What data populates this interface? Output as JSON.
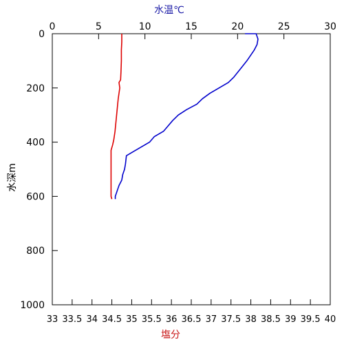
{
  "chart_data": {
    "type": "line",
    "y_axis": {
      "label": "水深m",
      "range": [
        1000,
        0
      ],
      "ticks": [
        0,
        200,
        400,
        600,
        800,
        1000
      ],
      "inverted": true
    },
    "x_top": {
      "label": "水温℃",
      "label_color": "#1a1aa6",
      "range": [
        0,
        30
      ],
      "ticks": [
        0,
        5,
        10,
        15,
        20,
        25,
        30
      ]
    },
    "x_bottom": {
      "label": "塩分",
      "label_color": "#c81414",
      "range": [
        33,
        40
      ],
      "ticks": [
        33,
        33.5,
        34,
        34.5,
        35,
        35.5,
        36,
        36.5,
        37,
        37.5,
        38,
        38.5,
        39,
        39.5,
        40
      ],
      "tick_labels": [
        "33",
        "33.5",
        "34",
        "34.5",
        "35",
        "35.5",
        "36",
        "36.5",
        "37",
        "37.5",
        "38",
        "38.5",
        "39",
        "39.5",
        "40"
      ]
    },
    "grid": false,
    "series": [
      {
        "axis": "x_top",
        "color": "#0000cc",
        "points": [
          [
            20.8,
            0
          ],
          [
            22.0,
            0
          ],
          [
            22.2,
            20
          ],
          [
            22.1,
            40
          ],
          [
            21.8,
            60
          ],
          [
            21.4,
            80
          ],
          [
            21.0,
            100
          ],
          [
            20.3,
            130
          ],
          [
            19.6,
            160
          ],
          [
            19.0,
            180
          ],
          [
            18.0,
            200
          ],
          [
            17.0,
            220
          ],
          [
            16.2,
            240
          ],
          [
            15.6,
            260
          ],
          [
            14.5,
            280
          ],
          [
            13.6,
            300
          ],
          [
            13.0,
            320
          ],
          [
            12.5,
            340
          ],
          [
            12.0,
            360
          ],
          [
            11.0,
            380
          ],
          [
            10.5,
            400
          ],
          [
            9.5,
            420
          ],
          [
            8.5,
            440
          ],
          [
            8.0,
            450
          ],
          [
            7.9,
            480
          ],
          [
            7.8,
            500
          ],
          [
            7.6,
            520
          ],
          [
            7.5,
            540
          ],
          [
            7.2,
            560
          ],
          [
            7.0,
            580
          ],
          [
            6.8,
            600
          ],
          [
            6.8,
            610
          ]
        ]
      },
      {
        "axis": "x_bottom",
        "color": "#dd0000",
        "points": [
          [
            34.75,
            0
          ],
          [
            34.75,
            30
          ],
          [
            34.74,
            60
          ],
          [
            34.74,
            100
          ],
          [
            34.73,
            140
          ],
          [
            34.72,
            170
          ],
          [
            34.68,
            180
          ],
          [
            34.7,
            200
          ],
          [
            34.68,
            220
          ],
          [
            34.66,
            240
          ],
          [
            34.64,
            270
          ],
          [
            34.62,
            300
          ],
          [
            34.6,
            330
          ],
          [
            34.58,
            360
          ],
          [
            34.55,
            390
          ],
          [
            34.52,
            410
          ],
          [
            34.48,
            430
          ],
          [
            34.48,
            470
          ],
          [
            34.48,
            520
          ],
          [
            34.48,
            560
          ],
          [
            34.48,
            600
          ],
          [
            34.5,
            610
          ]
        ]
      }
    ]
  }
}
